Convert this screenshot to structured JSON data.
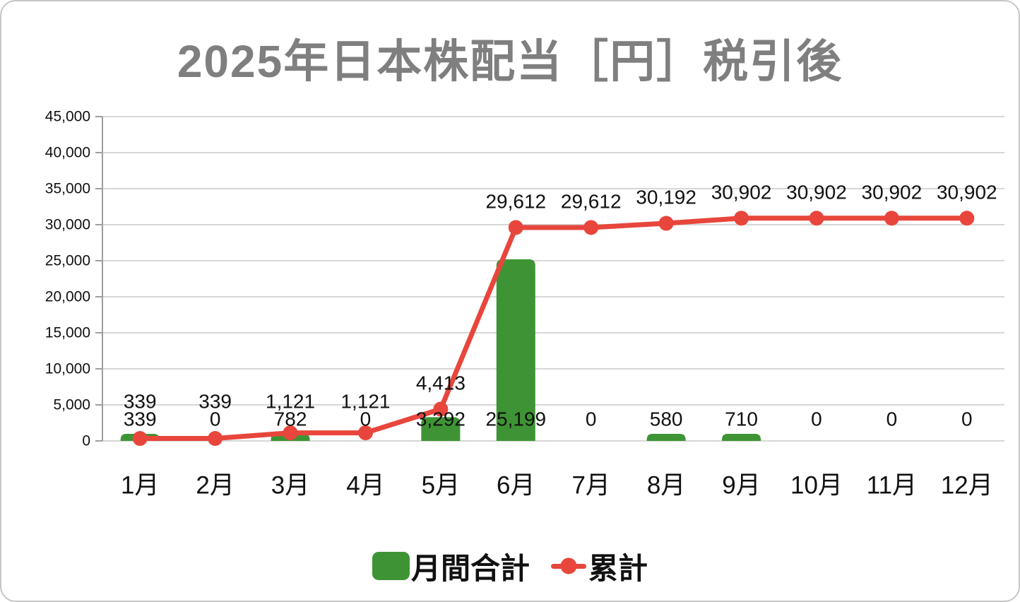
{
  "colors": {
    "bar": "#3e9434",
    "line": "#e8463c",
    "title": "#7f7f7f",
    "grid": "#c9c9c9",
    "axis": "#9e9e9e",
    "text": "#111111",
    "frame_border": "#c6c6c6"
  },
  "chart_data": {
    "type": "bar",
    "combo": [
      "bar",
      "line"
    ],
    "title": "2025年日本株配当［円］税引後",
    "categories": [
      "1月",
      "2月",
      "3月",
      "4月",
      "5月",
      "6月",
      "7月",
      "8月",
      "9月",
      "10月",
      "11月",
      "12月"
    ],
    "series": [
      {
        "name": "月間合計",
        "type": "bar",
        "color": "#3e9434",
        "values": [
          339,
          0,
          782,
          0,
          3292,
          25199,
          0,
          580,
          710,
          0,
          0,
          0
        ],
        "labels": [
          "339",
          "0",
          "782",
          "0",
          "3,292",
          "25,199",
          "0",
          "580",
          "710",
          "0",
          "0",
          "0"
        ]
      },
      {
        "name": "累計",
        "type": "line",
        "color": "#e8463c",
        "values": [
          339,
          339,
          1121,
          1121,
          4413,
          29612,
          29612,
          30192,
          30902,
          30902,
          30902,
          30902
        ],
        "labels": [
          "339",
          "339",
          "1,121",
          "1,121",
          "4,413",
          "29,612",
          "29,612",
          "30,192",
          "30,902",
          "30,902",
          "30,902",
          "30,902"
        ]
      }
    ],
    "xlabel": "",
    "ylabel": "",
    "ylim": [
      0,
      45000
    ],
    "ytick_step": 5000,
    "ytick_labels": [
      "0",
      "5,000",
      "10,000",
      "15,000",
      "20,000",
      "25,000",
      "30,000",
      "35,000",
      "40,000",
      "45,000"
    ],
    "grid": true,
    "data_labels": true,
    "legend_position": "bottom"
  }
}
